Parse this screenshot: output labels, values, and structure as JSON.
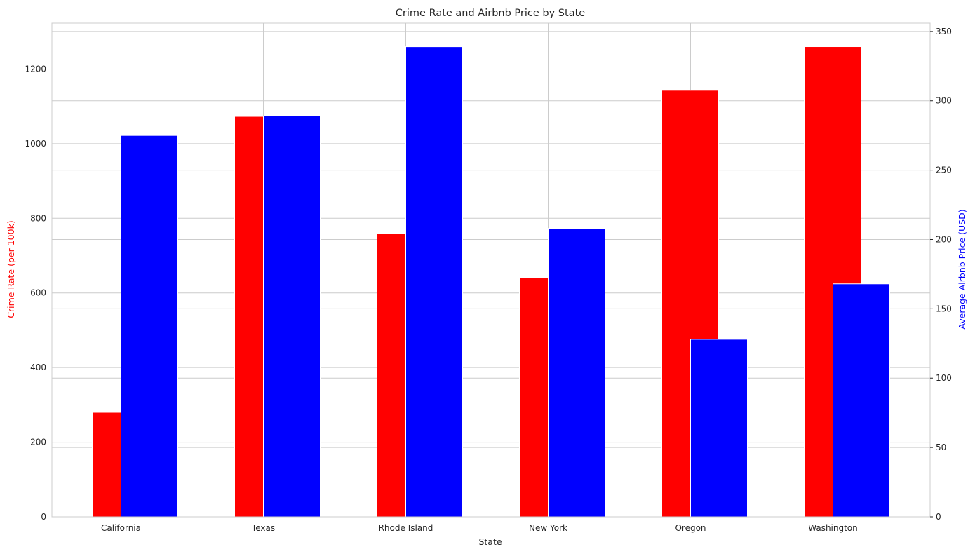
{
  "chart_data": {
    "type": "bar",
    "title": "Crime Rate and Airbnb Price by State",
    "xlabel": "State",
    "categories": [
      "California",
      "Texas",
      "Rhode Island",
      "New York",
      "Oregon",
      "Washington"
    ],
    "series": [
      {
        "name": "Crime Rate (per 100k)",
        "axis": "left",
        "color": "#ff0000",
        "values": [
          280,
          1073,
          760,
          641,
          1143,
          1260
        ]
      },
      {
        "name": "Average Airbnb Price (USD)",
        "axis": "right",
        "color": "#0000ff",
        "values": [
          275,
          289,
          339,
          208,
          128,
          168
        ]
      }
    ],
    "y_left": {
      "label": "Crime Rate (per 100k)",
      "label_color": "#ff0000",
      "ylim": [
        0,
        1323
      ],
      "ticks": [
        0,
        200,
        400,
        600,
        800,
        1000,
        1200
      ]
    },
    "y_right": {
      "label": "Average Airbnb Price (USD)",
      "label_color": "#0000ff",
      "ylim": [
        0,
        356
      ],
      "ticks": [
        0,
        50,
        100,
        150,
        200,
        250,
        300,
        350
      ]
    },
    "grid": true,
    "grid_color": "#cccccc",
    "legend": "none"
  }
}
